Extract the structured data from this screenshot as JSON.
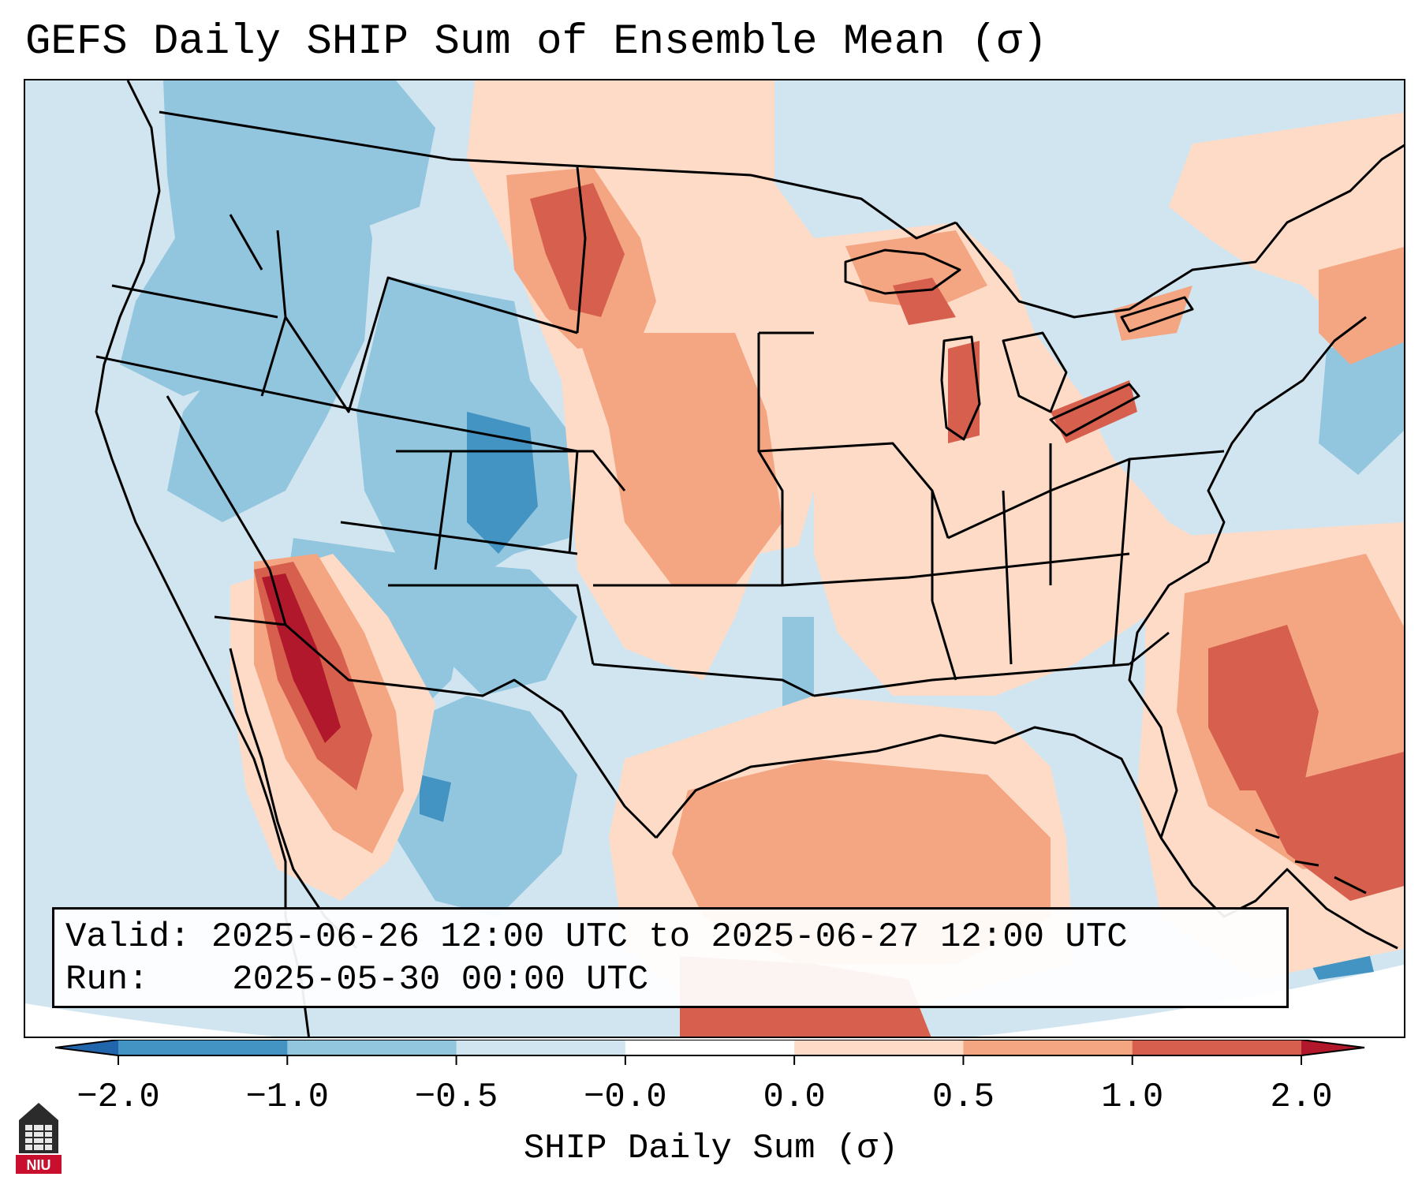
{
  "title": "GEFS Daily SHIP Sum of Ensemble Mean (σ)",
  "map": {
    "projection": "Lambert Conformal over CONUS",
    "field": "SHIP daily sum, ensemble mean (σ)",
    "highlights": {
      "strongest_positive": "southern California / Baja coast (>2.0 σ)",
      "positive_areas": [
        "northern Plains (Montana/Dakotas)",
        "Great Lakes",
        "Gulf of Mexico",
        "western Atlantic",
        "Caribbean"
      ],
      "negative_areas": [
        "Pacific Northwest",
        "Great Basin",
        "Colorado Rockies",
        "New Mexico / west Texas",
        "Northeast"
      ]
    }
  },
  "valid": {
    "label": "Valid:",
    "value": "2025-06-26 12:00 UTC to 2025-06-27 12:00 UTC"
  },
  "run": {
    "label": "Run:",
    "value": "2025-05-30 00:00 UTC"
  },
  "colorbar": {
    "label": "SHIP Daily Sum (σ)",
    "ticks": [
      "−2.0",
      "−1.0",
      "−0.5",
      "−0.0",
      "0.0",
      "0.5",
      "1.0",
      "2.0"
    ],
    "bins": [
      {
        "from": -2.0,
        "to": -1.0,
        "color": "#4393c3"
      },
      {
        "from": -1.0,
        "to": -0.5,
        "color": "#92c5de"
      },
      {
        "from": -0.5,
        "to": -0.0,
        "color": "#d1e5f0"
      },
      {
        "from": -0.0,
        "to": 0.0,
        "color": "#ffffff"
      },
      {
        "from": 0.0,
        "to": 0.5,
        "color": "#fddbc7"
      },
      {
        "from": 0.5,
        "to": 1.0,
        "color": "#f4a582"
      },
      {
        "from": 1.0,
        "to": 2.0,
        "color": "#d6604d"
      }
    ],
    "under_color": "#2166ac",
    "over_color": "#b2182b"
  },
  "logo": {
    "text": "NIU"
  },
  "colors": {
    "neg_strong": "#4393c3",
    "neg_mid": "#92c5de",
    "neg_weak": "#d1e5f0",
    "pos_weak": "#fddbc7",
    "pos_mid": "#f4a582",
    "pos_strong": "#d6604d",
    "pos_extreme": "#b2182b",
    "logo_red": "#c8102e"
  }
}
